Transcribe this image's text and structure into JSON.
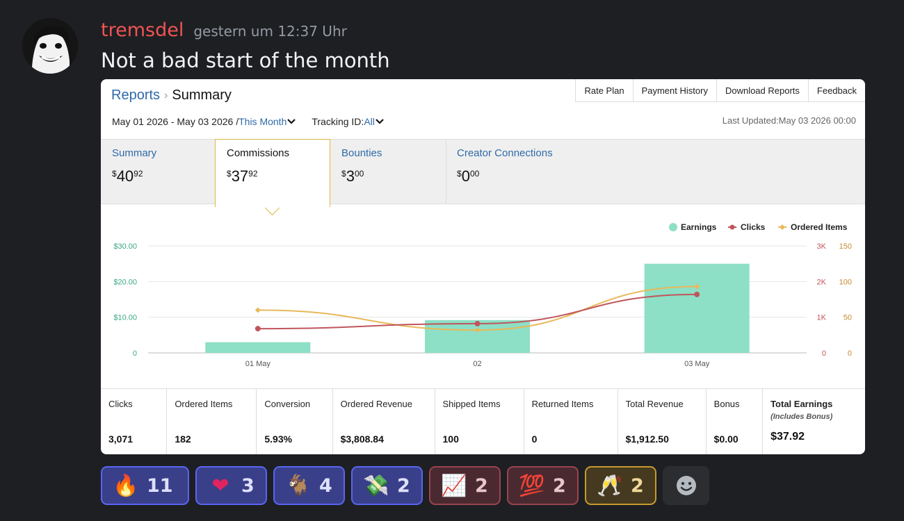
{
  "message": {
    "author": "tremsdel",
    "timestamp": "gestern um 12:37 Uhr",
    "text": "Not a bad start of the month"
  },
  "report": {
    "breadcrumb": {
      "parent": "Reports",
      "separator": "›",
      "current": "Summary"
    },
    "toolbar": [
      "Rate Plan",
      "Payment History",
      "Download Reports",
      "Feedback"
    ],
    "filters": {
      "range": "May 01 2026 - May 03 2026 /",
      "period": "This Month",
      "tracking_label": "Tracking ID:",
      "tracking_value": "All"
    },
    "last_updated": "Last Updated:May 03 2026 00:00",
    "tabs": [
      {
        "label": "Summary",
        "value": "40",
        "cents": "92"
      },
      {
        "label": "Commissions",
        "value": "37",
        "cents": "92",
        "active": true
      },
      {
        "label": "Bounties",
        "value": "3",
        "cents": "00"
      },
      {
        "label": "Creator Connections",
        "value": "0",
        "cents": "00"
      }
    ],
    "currency_symbol": "$",
    "stats": [
      {
        "label": "Clicks",
        "value": "3,071"
      },
      {
        "label": "Ordered Items",
        "value": "182"
      },
      {
        "label": "Conversion",
        "value": "5.93%"
      },
      {
        "label": "Ordered Revenue",
        "value": "$3,808.84"
      },
      {
        "label": "Shipped Items",
        "value": "100"
      },
      {
        "label": "Returned Items",
        "value": "0"
      },
      {
        "label": "Total Revenue",
        "value": "$1,912.50"
      },
      {
        "label": "Bonus",
        "value": "$0.00"
      },
      {
        "label": "Total Earnings",
        "sublabel": "(Includes Bonus)",
        "value": "$37.92"
      }
    ]
  },
  "chart_data": {
    "type": "bar",
    "categories": [
      "01 May",
      "02",
      "03 May"
    ],
    "legend": [
      "Earnings",
      "Clicks",
      "Ordered Items"
    ],
    "legend_position": "top-right",
    "series": [
      {
        "name": "Earnings",
        "type": "bar",
        "axis": "left",
        "values": [
          3.0,
          9.2,
          25.0
        ],
        "color": "#8ddfc6"
      },
      {
        "name": "Clicks",
        "type": "line",
        "axis": "right1",
        "values": [
          680,
          820,
          1640
        ],
        "color": "#c0565c"
      },
      {
        "name": "Ordered Items",
        "type": "line",
        "axis": "right2",
        "values": [
          60,
          32,
          93
        ],
        "color": "#e8b95a"
      }
    ],
    "y_left": {
      "range": [
        0,
        30
      ],
      "ticks": [
        "0",
        "$10.00",
        "$20.00",
        "$30.00"
      ],
      "tick_values": [
        0,
        10,
        20,
        30
      ],
      "color": "#3aa884"
    },
    "y_right1": {
      "range": [
        0,
        3000
      ],
      "ticks": [
        "0",
        "1K",
        "2K",
        "3K"
      ],
      "tick_values": [
        0,
        1000,
        2000,
        3000
      ],
      "color": "#c0565c"
    },
    "y_right2": {
      "range": [
        0,
        150
      ],
      "ticks": [
        "0",
        "50",
        "100",
        "150"
      ],
      "tick_values": [
        0,
        50,
        100,
        150
      ],
      "color": "#c98a2e"
    },
    "grid": true
  },
  "reactions": [
    {
      "icon": "fire-emoji",
      "glyph": "🔥",
      "count": "11",
      "style": "blue"
    },
    {
      "icon": "heart-emoji",
      "glyph": "❤",
      "count": "3",
      "style": "blue"
    },
    {
      "icon": "goat-emoji",
      "glyph": "🐐",
      "count": "4",
      "style": "blue"
    },
    {
      "icon": "money-with-wings-emoji",
      "glyph": "💸",
      "count": "2",
      "style": "blue"
    },
    {
      "icon": "chart-increasing-emoji",
      "glyph": "📈",
      "count": "2",
      "style": "red"
    },
    {
      "icon": "hundred-points-emoji",
      "glyph": "💯",
      "count": "2",
      "style": "red"
    },
    {
      "icon": "clinking-glasses-emoji",
      "glyph": "🥂",
      "count": "2",
      "style": "gold"
    }
  ],
  "colors": {
    "author": "#f05454",
    "link": "#2f6aa8",
    "accent_border": "#e2b83f"
  }
}
